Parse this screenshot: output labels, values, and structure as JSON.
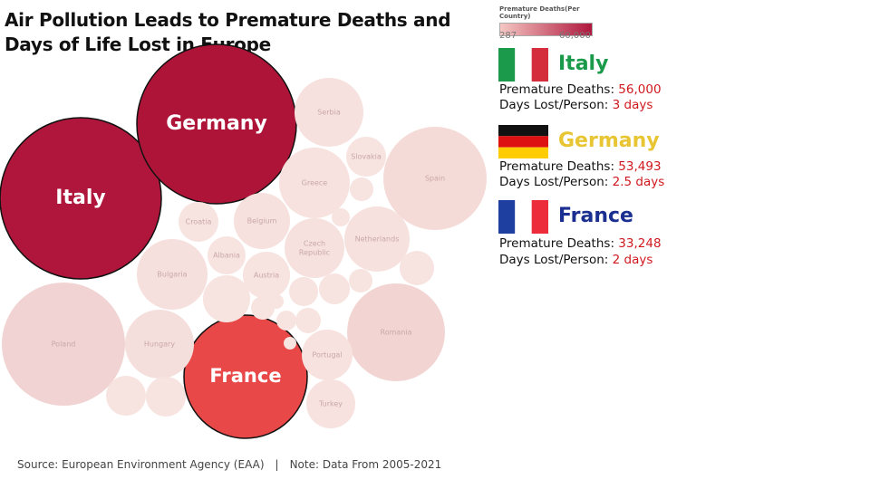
{
  "title": "Air Pollution Leads to Premature Deaths and Days of Life Lost in Europe",
  "legend": {
    "title": "Premature Deaths(Per Country)",
    "min_label": "287",
    "max_label": "60,000",
    "color_min": "#f4c7c3",
    "color_max": "#b0163c"
  },
  "highlights": [
    {
      "country": "Italy",
      "deaths_label": "Premature Deaths:",
      "deaths_value": "56,000",
      "days_label": "Days Lost/Person:",
      "days_value": "3 days",
      "name_color": "#1a9a4a",
      "flag": [
        "#1a9a4a",
        "#ffffff",
        "#d42e3c"
      ],
      "flag_orientation": "vertical"
    },
    {
      "country": "Germany",
      "deaths_label": "Premature Deaths:",
      "deaths_value": "53,493",
      "days_label": "Days Lost/Person:",
      "days_value": "2.5 days",
      "name_color": "#e8c532",
      "flag": [
        "#111111",
        "#dd1111",
        "#ffcc00"
      ],
      "flag_orientation": "horizontal"
    },
    {
      "country": "France",
      "deaths_label": "Premature Deaths:",
      "deaths_value": "33,248",
      "days_label": "Days Lost/Person:",
      "days_value": "2 days",
      "name_color": "#1a2f8f",
      "flag": [
        "#1f3fa0",
        "#ffffff",
        "#ec2b3b"
      ],
      "flag_orientation": "vertical"
    }
  ],
  "footer": {
    "source": "Source: European Environment Agency (EAA)",
    "separator": "|",
    "note": "Note: Data From 2005-2021"
  },
  "chart_data": {
    "type": "bubble",
    "title": "Air Pollution Leads to Premature Deaths and Days of Life Lost in Europe",
    "size_encodes": "Premature Deaths",
    "color_encodes": "Premature Deaths",
    "color_range": [
      287,
      60000
    ],
    "bubbles": [
      {
        "label": "Italy",
        "value": 56000,
        "color": "#b0163c",
        "major": true
      },
      {
        "label": "Germany",
        "value": 53493,
        "color": "#ad1437",
        "major": true
      },
      {
        "label": "France",
        "value": 33248,
        "color": "#e84848",
        "major": true
      },
      {
        "label": "Poland",
        "value": 16500,
        "color": "#f1d3d3",
        "major": false
      },
      {
        "label": "Romania",
        "value": 10500,
        "color": "#f2d5d3",
        "major": false
      },
      {
        "label": "Spain",
        "value": 11000,
        "color": "#f5dbd8",
        "major": false
      },
      {
        "label": "Hungary",
        "value": 5500,
        "color": "#f5dfdc",
        "major": false
      },
      {
        "label": "Bulgaria",
        "value": 5400,
        "color": "#f6e0dd",
        "major": false
      },
      {
        "label": "Serbia",
        "value": 4600,
        "color": "#f6e1de",
        "major": false
      },
      {
        "label": "Netherlands",
        "value": 4300,
        "color": "#f6e1de",
        "major": false
      },
      {
        "label": "Czech Republic",
        "value": 3800,
        "color": "#f6e1de",
        "major": false
      },
      {
        "label": "Portugal",
        "value": 2800,
        "color": "#f7e2df",
        "major": false
      },
      {
        "label": "Turkey",
        "value": 2500,
        "color": "#f7e2df",
        "major": false
      },
      {
        "label": "Greece",
        "value": 3800,
        "color": "#f7e2df",
        "major": false
      },
      {
        "label": "Belgium",
        "value": 3000,
        "color": "#f6e1de",
        "major": false
      },
      {
        "label": "Slovakia",
        "value": 1800,
        "color": "#f7e3e0",
        "major": false
      },
      {
        "label": "Croatia",
        "value": 1700,
        "color": "#f7e3e0",
        "major": false
      },
      {
        "label": "Albania",
        "value": 1500,
        "color": "#f7e3e0",
        "major": false
      },
      {
        "label": "Austria",
        "value": 2000,
        "color": "#f7e3e0",
        "major": false
      },
      {
        "label": "",
        "value": 2200,
        "color": "#f7e3e0",
        "major": false
      },
      {
        "label": "",
        "value": 1500,
        "color": "#f7e3e0",
        "major": false
      },
      {
        "label": "",
        "value": 1400,
        "color": "#f7e3e0",
        "major": false
      },
      {
        "label": "",
        "value": 1100,
        "color": "#f7e3e0",
        "major": false
      },
      {
        "label": "",
        "value": 1100,
        "color": "#f7e3e0",
        "major": false
      },
      {
        "label": "",
        "value": 1000,
        "color": "#f7e3e0",
        "major": false
      },
      {
        "label": "",
        "value": 850,
        "color": "#f7e3e0",
        "major": false
      },
      {
        "label": "",
        "value": 700,
        "color": "#f7e3e0",
        "major": false
      },
      {
        "label": "",
        "value": 550,
        "color": "#f7e3e0",
        "major": false
      },
      {
        "label": "",
        "value": 450,
        "color": "#f7e3e0",
        "major": false
      },
      {
        "label": "",
        "value": 400,
        "color": "#f7e3e0",
        "major": false
      },
      {
        "label": "",
        "value": 350,
        "color": "#f7e3e0",
        "major": false
      },
      {
        "label": "",
        "value": 300,
        "color": "#f7e3e0",
        "major": false
      },
      {
        "label": "",
        "value": 287,
        "color": "#f7e3e0",
        "major": false
      }
    ]
  }
}
